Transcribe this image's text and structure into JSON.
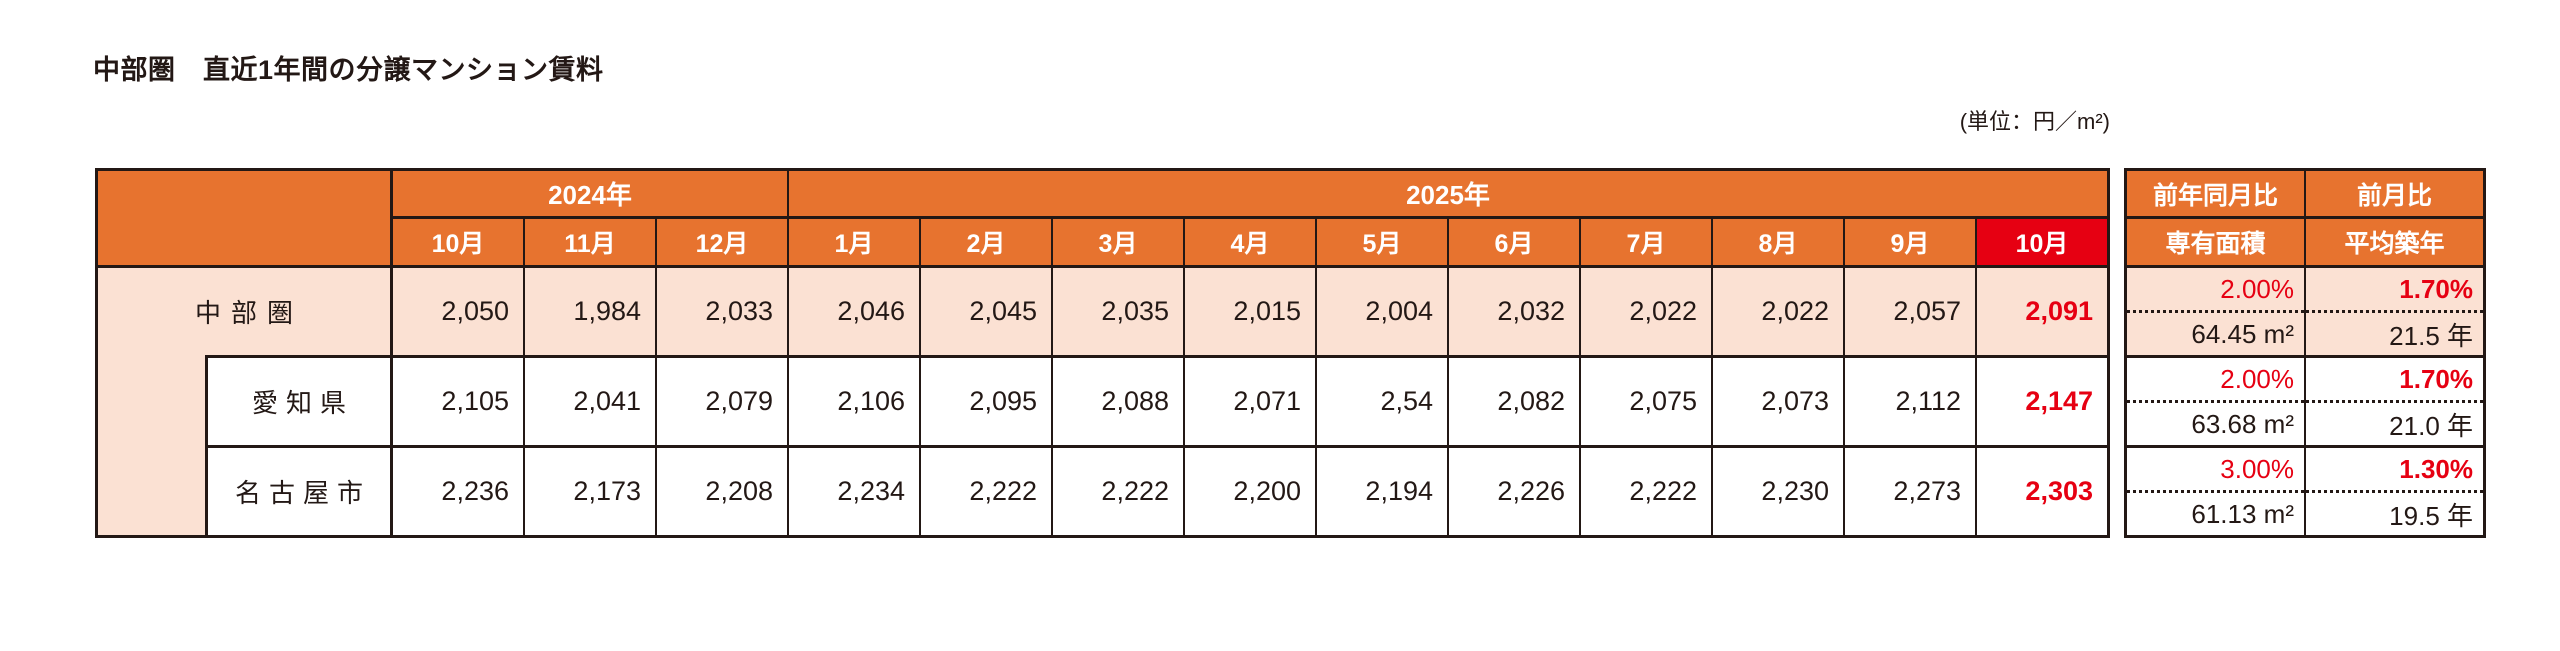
{
  "title": "中部圏　直近1年間の分譲マンション賃料",
  "unit_note": "(単位：円／m²)",
  "colors": {
    "header_orange": "#E7732F",
    "row_pink": "#FBE1D3",
    "highlight_red": "#E60012",
    "ink": "#231815"
  },
  "header": {
    "year_2024": "2024年",
    "year_2025": "2025年",
    "months": [
      "10月",
      "11月",
      "12月",
      "1月",
      "2月",
      "3月",
      "4月",
      "5月",
      "6月",
      "7月",
      "8月",
      "9月",
      "10月"
    ],
    "yoy_label": "前年同月比",
    "mom_label": "前月比",
    "area_label": "専有面積",
    "age_label": "平均築年"
  },
  "rows": [
    {
      "label": "中部圏",
      "values": [
        "2,050",
        "1,984",
        "2,033",
        "2,046",
        "2,045",
        "2,035",
        "2,015",
        "2,004",
        "2,032",
        "2,022",
        "2,022",
        "2,057",
        "2,091"
      ],
      "yoy": "2.00%",
      "area": "64.45 m²",
      "mom": "1.70%",
      "age": "21.5 年"
    },
    {
      "label": "愛知県",
      "values": [
        "2,105",
        "2,041",
        "2,079",
        "2,106",
        "2,095",
        "2,088",
        "2,071",
        "2,54",
        "2,082",
        "2,075",
        "2,073",
        "2,112",
        "2,147"
      ],
      "yoy": "2.00%",
      "area": "63.68 m²",
      "mom": "1.70%",
      "age": "21.0 年"
    },
    {
      "label": "名古屋市",
      "values": [
        "2,236",
        "2,173",
        "2,208",
        "2,234",
        "2,222",
        "2,222",
        "2,200",
        "2,194",
        "2,226",
        "2,222",
        "2,230",
        "2,273",
        "2,303"
      ],
      "yoy": "3.00%",
      "area": "61.13 m²",
      "mom": "1.30%",
      "age": "19.5 年"
    }
  ]
}
